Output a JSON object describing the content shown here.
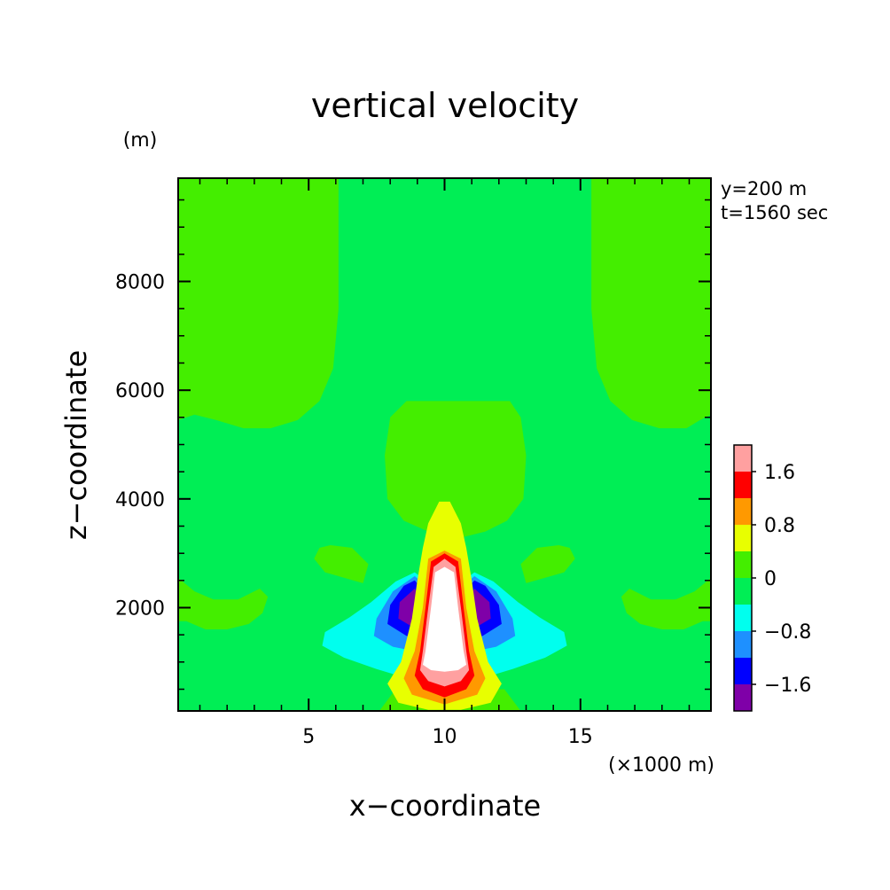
{
  "chart_data": {
    "type": "contour",
    "title": "vertical velocity",
    "xlabel": "x−coordinate",
    "ylabel": "z−coordinate",
    "x_unit": "(×1000 m)",
    "y_unit": "(m)",
    "annotations": [
      "y=200 m",
      "t=1560 sec"
    ],
    "xlim": [
      0.2,
      19.8
    ],
    "ylim": [
      100,
      9900
    ],
    "xticks": [
      {
        "value": 5,
        "label": "5"
      },
      {
        "value": 10,
        "label": "10"
      },
      {
        "value": 15,
        "label": "15"
      }
    ],
    "yticks": [
      {
        "value": 2000,
        "label": "2000"
      },
      {
        "value": 4000,
        "label": "4000"
      },
      {
        "value": 6000,
        "label": "6000"
      },
      {
        "value": 8000,
        "label": "8000"
      }
    ],
    "colorbar": {
      "levels": [
        {
          "range": [
            -2.0,
            -1.6
          ],
          "color": "#7f00a8"
        },
        {
          "range": [
            -1.6,
            -1.2
          ],
          "color": "#0000ff"
        },
        {
          "range": [
            -1.2,
            -0.8
          ],
          "color": "#1e90ff"
        },
        {
          "range": [
            -0.8,
            -0.4
          ],
          "color": "#00ffee"
        },
        {
          "range": [
            -0.4,
            0.0
          ],
          "color": "#00ee55"
        },
        {
          "range": [
            0.0,
            0.4
          ],
          "color": "#44ee00"
        },
        {
          "range": [
            0.4,
            0.8
          ],
          "color": "#e8ff00"
        },
        {
          "range": [
            0.8,
            1.2
          ],
          "color": "#ff9900"
        },
        {
          "range": [
            1.2,
            1.6
          ],
          "color": "#ff0000"
        },
        {
          "range": [
            1.6,
            2.0
          ],
          "color": "#ffa0a0"
        }
      ],
      "tick_labels": [
        {
          "value": 1.6,
          "label": "1.6"
        },
        {
          "value": 0.8,
          "label": "0.8"
        },
        {
          "value": 0.0,
          "label": "0"
        },
        {
          "value": -0.8,
          "label": "−0.8"
        },
        {
          "value": -1.6,
          "label": "−1.6"
        }
      ],
      "above_max_color": "#ffffff"
    },
    "background_color": "#00ee55",
    "contour_regions": [
      {
        "level": 0.0,
        "color": "#44ee00",
        "outline": [
          [
            0.2,
            9900
          ],
          [
            6.1,
            9900
          ],
          [
            6.1,
            7500
          ],
          [
            5.9,
            6400
          ],
          [
            5.4,
            5800
          ],
          [
            4.6,
            5450
          ],
          [
            3.6,
            5300
          ],
          [
            2.6,
            5300
          ],
          [
            1.6,
            5450
          ],
          [
            0.8,
            5550
          ],
          [
            0.2,
            5450
          ]
        ]
      },
      {
        "level": 0.0,
        "color": "#44ee00",
        "outline": [
          [
            19.8,
            9900
          ],
          [
            15.4,
            9900
          ],
          [
            15.4,
            7500
          ],
          [
            15.6,
            6400
          ],
          [
            16.1,
            5800
          ],
          [
            16.9,
            5450
          ],
          [
            17.9,
            5300
          ],
          [
            18.9,
            5300
          ],
          [
            19.4,
            5450
          ],
          [
            19.8,
            5550
          ]
        ]
      },
      {
        "level": 0.0,
        "color": "#44ee00",
        "outline": [
          [
            8.6,
            5800
          ],
          [
            12.4,
            5800
          ],
          [
            12.8,
            5500
          ],
          [
            13.0,
            4800
          ],
          [
            12.9,
            4000
          ],
          [
            12.3,
            3600
          ],
          [
            11.5,
            3400
          ],
          [
            10.7,
            3300
          ],
          [
            10.2,
            3300
          ],
          [
            9.4,
            3400
          ],
          [
            8.5,
            3600
          ],
          [
            7.9,
            4000
          ],
          [
            7.8,
            4800
          ],
          [
            8.0,
            5500
          ]
        ]
      },
      {
        "level": 0.0,
        "color": "#44ee00",
        "outline": [
          [
            0.2,
            2550
          ],
          [
            0.8,
            2300
          ],
          [
            1.5,
            2150
          ],
          [
            2.4,
            2150
          ],
          [
            3.2,
            2350
          ],
          [
            3.5,
            2200
          ],
          [
            3.3,
            1900
          ],
          [
            2.8,
            1700
          ],
          [
            2.0,
            1600
          ],
          [
            1.2,
            1600
          ],
          [
            0.5,
            1750
          ],
          [
            0.2,
            1750
          ]
        ]
      },
      {
        "level": 0.0,
        "color": "#44ee00",
        "outline": [
          [
            19.8,
            2550
          ],
          [
            19.2,
            2300
          ],
          [
            18.5,
            2150
          ],
          [
            17.6,
            2150
          ],
          [
            16.8,
            2350
          ],
          [
            16.5,
            2200
          ],
          [
            16.7,
            1900
          ],
          [
            17.2,
            1700
          ],
          [
            18.0,
            1600
          ],
          [
            18.8,
            1600
          ],
          [
            19.5,
            1750
          ],
          [
            19.8,
            1750
          ]
        ]
      },
      {
        "level": 0.0,
        "color": "#44ee00",
        "outline": [
          [
            5.8,
            3150
          ],
          [
            6.6,
            3100
          ],
          [
            7.2,
            2800
          ],
          [
            7.0,
            2450
          ],
          [
            6.3,
            2550
          ],
          [
            5.6,
            2650
          ],
          [
            5.2,
            2900
          ],
          [
            5.4,
            3100
          ]
        ]
      },
      {
        "level": 0.0,
        "color": "#44ee00",
        "outline": [
          [
            14.2,
            3150
          ],
          [
            13.4,
            3100
          ],
          [
            12.8,
            2800
          ],
          [
            13.0,
            2450
          ],
          [
            13.7,
            2550
          ],
          [
            14.4,
            2650
          ],
          [
            14.8,
            2900
          ],
          [
            14.6,
            3100
          ]
        ]
      },
      {
        "level": 0.0,
        "color": "#44ee00",
        "outline": [
          [
            8.2,
            500
          ],
          [
            12.2,
            500
          ],
          [
            12.8,
            100
          ],
          [
            7.6,
            100
          ]
        ]
      },
      {
        "level": -0.4,
        "color": "#00ffee",
        "outline": [
          [
            8.9,
            2650
          ],
          [
            9.3,
            2500
          ],
          [
            9.4,
            2000
          ],
          [
            9.6,
            1500
          ],
          [
            10.0,
            900
          ],
          [
            10.0,
            720
          ],
          [
            8.5,
            720
          ],
          [
            7.5,
            870
          ],
          [
            6.3,
            1080
          ],
          [
            5.5,
            1300
          ],
          [
            5.6,
            1550
          ],
          [
            6.5,
            1820
          ],
          [
            7.3,
            2100
          ],
          [
            8.2,
            2480
          ]
        ]
      },
      {
        "level": -0.4,
        "color": "#00ffee",
        "outline": [
          [
            11.1,
            2650
          ],
          [
            10.7,
            2500
          ],
          [
            10.6,
            2000
          ],
          [
            10.4,
            1500
          ],
          [
            10.0,
            900
          ],
          [
            10.0,
            720
          ],
          [
            11.5,
            720
          ],
          [
            12.5,
            870
          ],
          [
            13.7,
            1080
          ],
          [
            14.5,
            1300
          ],
          [
            14.4,
            1550
          ],
          [
            13.5,
            1820
          ],
          [
            12.7,
            2100
          ],
          [
            11.8,
            2480
          ]
        ]
      },
      {
        "level": -0.8,
        "color": "#1e90ff",
        "outline": [
          [
            8.9,
            2580
          ],
          [
            9.3,
            2400
          ],
          [
            9.5,
            1800
          ],
          [
            9.6,
            1250
          ],
          [
            9.1,
            1180
          ],
          [
            8.1,
            1280
          ],
          [
            7.4,
            1480
          ],
          [
            7.5,
            1800
          ],
          [
            8.1,
            2300
          ]
        ]
      },
      {
        "level": -0.8,
        "color": "#1e90ff",
        "outline": [
          [
            11.1,
            2580
          ],
          [
            10.7,
            2400
          ],
          [
            10.5,
            1800
          ],
          [
            10.4,
            1250
          ],
          [
            10.9,
            1180
          ],
          [
            11.9,
            1280
          ],
          [
            12.6,
            1480
          ],
          [
            12.5,
            1800
          ],
          [
            11.9,
            2300
          ]
        ]
      },
      {
        "level": -1.2,
        "color": "#0000ff",
        "outline": [
          [
            8.9,
            2500
          ],
          [
            9.25,
            2300
          ],
          [
            9.35,
            1700
          ],
          [
            9.25,
            1450
          ],
          [
            8.6,
            1480
          ],
          [
            7.9,
            1700
          ],
          [
            8.0,
            2050
          ],
          [
            8.5,
            2400
          ]
        ]
      },
      {
        "level": -1.2,
        "color": "#0000ff",
        "outline": [
          [
            11.1,
            2500
          ],
          [
            10.75,
            2300
          ],
          [
            10.65,
            1700
          ],
          [
            10.75,
            1450
          ],
          [
            11.4,
            1480
          ],
          [
            12.1,
            1700
          ],
          [
            12.0,
            2050
          ],
          [
            11.5,
            2400
          ]
        ]
      },
      {
        "level": -1.6,
        "color": "#7f00a8",
        "outline": [
          [
            8.9,
            2350
          ],
          [
            9.15,
            2100
          ],
          [
            9.15,
            1700
          ],
          [
            8.8,
            1650
          ],
          [
            8.3,
            1800
          ],
          [
            8.35,
            2100
          ]
        ]
      },
      {
        "level": -1.6,
        "color": "#7f00a8",
        "outline": [
          [
            11.1,
            2350
          ],
          [
            10.85,
            2100
          ],
          [
            10.85,
            1700
          ],
          [
            11.2,
            1650
          ],
          [
            11.7,
            1800
          ],
          [
            11.65,
            2100
          ]
        ]
      },
      {
        "level": 0.4,
        "color": "#e8ff00",
        "outline": [
          [
            10.2,
            3950
          ],
          [
            10.6,
            3550
          ],
          [
            10.8,
            3100
          ],
          [
            11.0,
            2500
          ],
          [
            11.2,
            1800
          ],
          [
            11.6,
            1000
          ],
          [
            12.1,
            600
          ],
          [
            11.7,
            250
          ],
          [
            10.6,
            120
          ],
          [
            9.4,
            120
          ],
          [
            8.3,
            250
          ],
          [
            7.9,
            600
          ],
          [
            8.4,
            1000
          ],
          [
            8.8,
            1800
          ],
          [
            9.0,
            2500
          ],
          [
            9.2,
            3100
          ],
          [
            9.4,
            3550
          ],
          [
            9.8,
            3950
          ]
        ]
      },
      {
        "level": 0.8,
        "color": "#ff9900",
        "outline": [
          [
            10.0,
            3050
          ],
          [
            10.6,
            2900
          ],
          [
            10.8,
            2000
          ],
          [
            11.1,
            1200
          ],
          [
            11.5,
            700
          ],
          [
            11.2,
            400
          ],
          [
            10.0,
            220
          ],
          [
            8.8,
            400
          ],
          [
            8.5,
            700
          ],
          [
            8.9,
            1200
          ],
          [
            9.2,
            2000
          ],
          [
            9.4,
            2900
          ]
        ]
      },
      {
        "level": 1.2,
        "color": "#ff0000",
        "outline": [
          [
            10.0,
            3000
          ],
          [
            10.5,
            2850
          ],
          [
            10.7,
            2000
          ],
          [
            10.9,
            1200
          ],
          [
            11.1,
            750
          ],
          [
            10.8,
            500
          ],
          [
            10.0,
            350
          ],
          [
            9.2,
            500
          ],
          [
            8.9,
            750
          ],
          [
            9.1,
            1200
          ],
          [
            9.3,
            2000
          ],
          [
            9.5,
            2850
          ]
        ]
      },
      {
        "level": 1.6,
        "color": "#ffa0a0",
        "outline": [
          [
            10.0,
            2900
          ],
          [
            10.4,
            2750
          ],
          [
            10.6,
            2000
          ],
          [
            10.8,
            1200
          ],
          [
            10.9,
            850
          ],
          [
            10.6,
            650
          ],
          [
            10.0,
            550
          ],
          [
            9.4,
            650
          ],
          [
            9.1,
            850
          ],
          [
            9.2,
            1200
          ],
          [
            9.4,
            2000
          ],
          [
            9.6,
            2750
          ]
        ]
      },
      {
        "level": 2.0,
        "color": "#ffffff",
        "outline": [
          [
            10.0,
            2750
          ],
          [
            10.35,
            2650
          ],
          [
            10.5,
            2000
          ],
          [
            10.7,
            1200
          ],
          [
            10.8,
            950
          ],
          [
            10.5,
            850
          ],
          [
            10.0,
            820
          ],
          [
            9.5,
            850
          ],
          [
            9.2,
            950
          ],
          [
            9.3,
            1200
          ],
          [
            9.5,
            2000
          ],
          [
            9.65,
            2650
          ]
        ]
      }
    ]
  }
}
